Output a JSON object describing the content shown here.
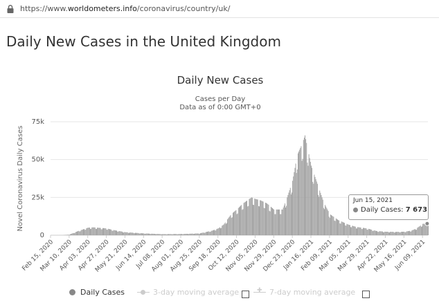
{
  "browser": {
    "url_scheme": "https://www.",
    "url_host": "worldometers.info",
    "url_path": "/coronavirus/country/uk/"
  },
  "page": {
    "title": "Daily New Cases in the United Kingdom"
  },
  "tooltip": {
    "date": "Jun 15, 2021",
    "series_label": "Daily Cases: ",
    "value_text": "7 673"
  },
  "legend": {
    "daily": "Daily Cases",
    "avg3": "3-day moving average",
    "avg7": "7-day moving average"
  },
  "colors": {
    "bar": "#9b9b9b",
    "grid": "#e6e6e6",
    "axis": "#cccccc",
    "text": "#333333",
    "muted": "#cccccc"
  },
  "chart_data": {
    "type": "bar",
    "title": "Daily New Cases",
    "subtitle_lines": [
      "Cases per Day",
      "Data as of 0:00 GMT+0"
    ],
    "ylabel": "Novel Coronavirus Daily Cases",
    "xlabel": "",
    "ylim": [
      0,
      75000
    ],
    "yticks": [
      0,
      25000,
      50000,
      75000
    ],
    "ytick_labels": [
      "0",
      "25k",
      "50k",
      "75k"
    ],
    "grid": true,
    "legend_position": "bottom",
    "x_start": "Feb 15, 2020",
    "x_end": "Jun 16, 2021",
    "xtick_labels": [
      "Feb 15, 2020",
      "Mar 10, 2020",
      "Apr 03, 2020",
      "Apr 27, 2020",
      "May 21, 2020",
      "Jun 14, 2020",
      "Jul 08, 2020",
      "Aug 01, 2020",
      "Aug 25, 2020",
      "Sep 18, 2020",
      "Oct 12, 2020",
      "Nov 05, 2020",
      "Nov 29, 2020",
      "Dec 23, 2020",
      "Jan 16, 2021",
      "Feb 09, 2021",
      "Mar 05, 2021",
      "Mar 29, 2021",
      "Apr 22, 2021",
      "May 16, 2021",
      "Jun 09, 2021"
    ],
    "series": [
      {
        "name": "Daily Cases",
        "x": [
          "Feb 15, 2020",
          "Mar 01, 2020",
          "Mar 10, 2020",
          "Mar 20, 2020",
          "Apr 03, 2020",
          "Apr 10, 2020",
          "Apr 20, 2020",
          "Apr 27, 2020",
          "May 05, 2020",
          "May 21, 2020",
          "Jun 14, 2020",
          "Jul 08, 2020",
          "Aug 01, 2020",
          "Aug 25, 2020",
          "Sep 10, 2020",
          "Sep 18, 2020",
          "Sep 25, 2020",
          "Oct 05, 2020",
          "Oct 12, 2020",
          "Oct 20, 2020",
          "Oct 31, 2020",
          "Nov 05, 2020",
          "Nov 12, 2020",
          "Nov 20, 2020",
          "Nov 29, 2020",
          "Dec 10, 2020",
          "Dec 16, 2020",
          "Dec 23, 2020",
          "Dec 29, 2020",
          "Jan 04, 2021",
          "Jan 08, 2021",
          "Jan 12, 2021",
          "Jan 16, 2021",
          "Jan 22, 2021",
          "Feb 01, 2021",
          "Feb 09, 2021",
          "Feb 20, 2021",
          "Mar 05, 2021",
          "Mar 15, 2021",
          "Mar 29, 2021",
          "Apr 10, 2021",
          "Apr 22, 2021",
          "May 05, 2021",
          "May 16, 2021",
          "May 25, 2021",
          "Jun 01, 2021",
          "Jun 09, 2021",
          "Jun 15, 2021"
        ],
        "values": [
          0,
          20,
          400,
          2500,
          5000,
          5200,
          4800,
          4500,
          3500,
          2000,
          1200,
          700,
          800,
          1200,
          3000,
          4500,
          7000,
          14000,
          17000,
          21000,
          25000,
          24000,
          23000,
          21000,
          17000,
          17000,
          25000,
          36000,
          53000,
          60000,
          66000,
          56000,
          46000,
          37000,
          22000,
          14000,
          10000,
          7000,
          5500,
          4500,
          2800,
          2300,
          2200,
          2300,
          3000,
          4500,
          7500,
          7673
        ]
      }
    ]
  }
}
